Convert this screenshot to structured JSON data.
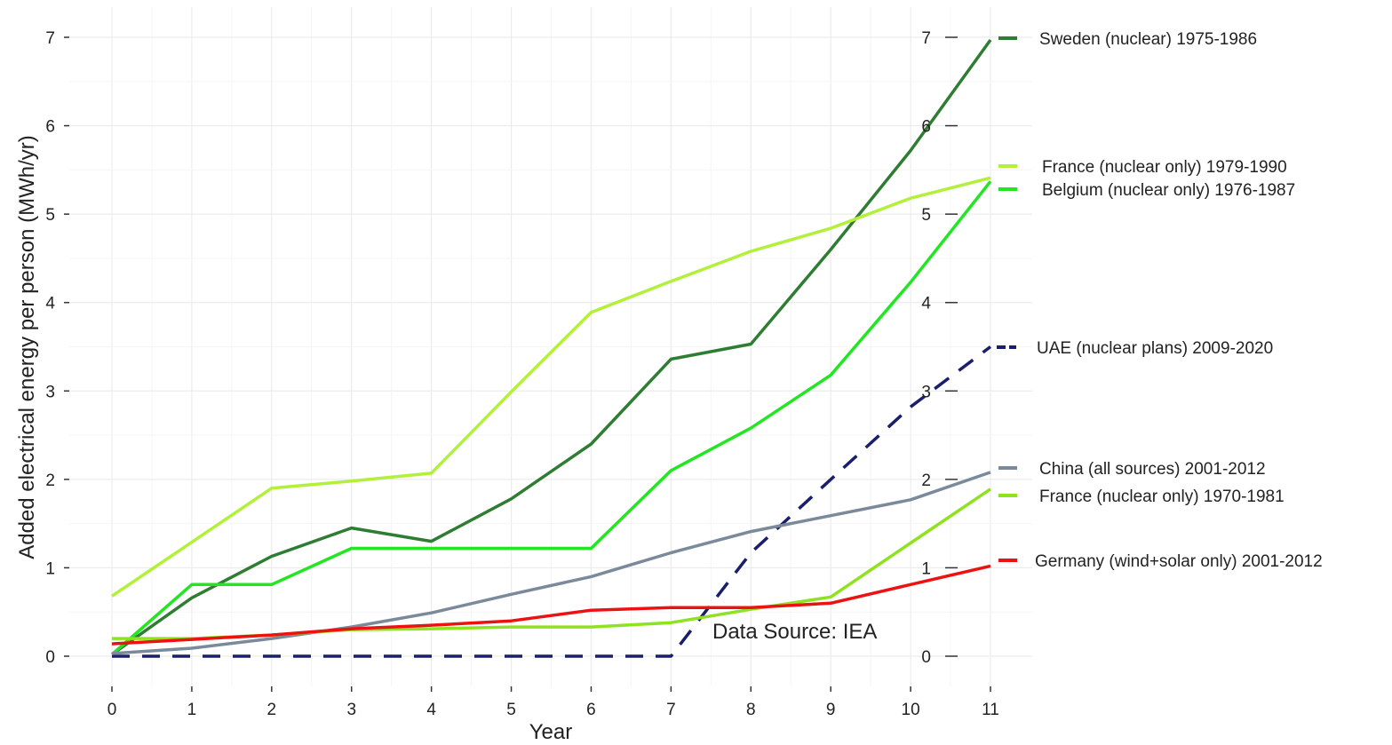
{
  "chart_data": {
    "type": "line",
    "xlabel": "Year",
    "ylabel": "Added electrical energy per person (MWh/yr)",
    "x": [
      0,
      1,
      2,
      3,
      4,
      5,
      6,
      7,
      8,
      9,
      10,
      11
    ],
    "xlim": [
      -0.55,
      11.55
    ],
    "ylim": [
      -0.35,
      7.35
    ],
    "x_ticks": [
      "0",
      "1",
      "2",
      "3",
      "4",
      "5",
      "6",
      "7",
      "8",
      "9",
      "10",
      "11"
    ],
    "y_ticks": [
      "0",
      "1",
      "2",
      "3",
      "4",
      "5",
      "6",
      "7"
    ],
    "right_axis_ticks": [
      "0",
      "1",
      "2",
      "3",
      "4",
      "5",
      "6",
      "7"
    ],
    "grid": true,
    "legend_placement": "right, labels at line ends",
    "annotation": "Data Source: IEA",
    "series": [
      {
        "name": "Sweden (nuclear) 1975-1986",
        "color": "#2e7d32",
        "dashed": false,
        "values": [
          0.02,
          0.66,
          1.13,
          1.45,
          1.3,
          1.78,
          2.4,
          3.36,
          3.53,
          4.6,
          5.72,
          6.97
        ]
      },
      {
        "name": "France (nuclear only) 1979-1990",
        "color": "#b2f03a",
        "dashed": false,
        "values": [
          0.68,
          1.29,
          1.9,
          1.98,
          2.07,
          2.99,
          3.89,
          4.24,
          4.58,
          4.84,
          5.18,
          5.41
        ]
      },
      {
        "name": "Belgium (nuclear only) 1976-1987",
        "color": "#22e622",
        "dashed": false,
        "values": [
          0.02,
          0.81,
          0.81,
          1.22,
          1.22,
          1.22,
          1.22,
          2.1,
          2.58,
          3.18,
          4.23,
          5.37
        ]
      },
      {
        "name": "UAE (nuclear plans) 2009-2020",
        "color": "#1a1f6b",
        "dashed": true,
        "values": [
          0.0,
          0.0,
          0.0,
          0.0,
          0.0,
          0.0,
          0.0,
          0.0,
          1.17,
          2.0,
          2.82,
          3.5
        ]
      },
      {
        "name": "China (all sources) 2001-2012",
        "color": "#7a8a9a",
        "dashed": false,
        "values": [
          0.03,
          0.09,
          0.2,
          0.33,
          0.49,
          0.7,
          0.9,
          1.17,
          1.41,
          1.59,
          1.77,
          2.08
        ]
      },
      {
        "name": "France (nuclear only) 1970-1981",
        "color": "#8fe21f",
        "dashed": false,
        "values": [
          0.2,
          0.2,
          0.24,
          0.3,
          0.31,
          0.33,
          0.33,
          0.38,
          0.53,
          0.67,
          1.28,
          1.89
        ]
      },
      {
        "name": "Germany (wind+solar only) 2001-2012",
        "color": "#ee1111",
        "dashed": false,
        "values": [
          0.14,
          0.19,
          0.24,
          0.31,
          0.35,
          0.4,
          0.52,
          0.55,
          0.55,
          0.6,
          0.81,
          1.02
        ]
      }
    ]
  }
}
